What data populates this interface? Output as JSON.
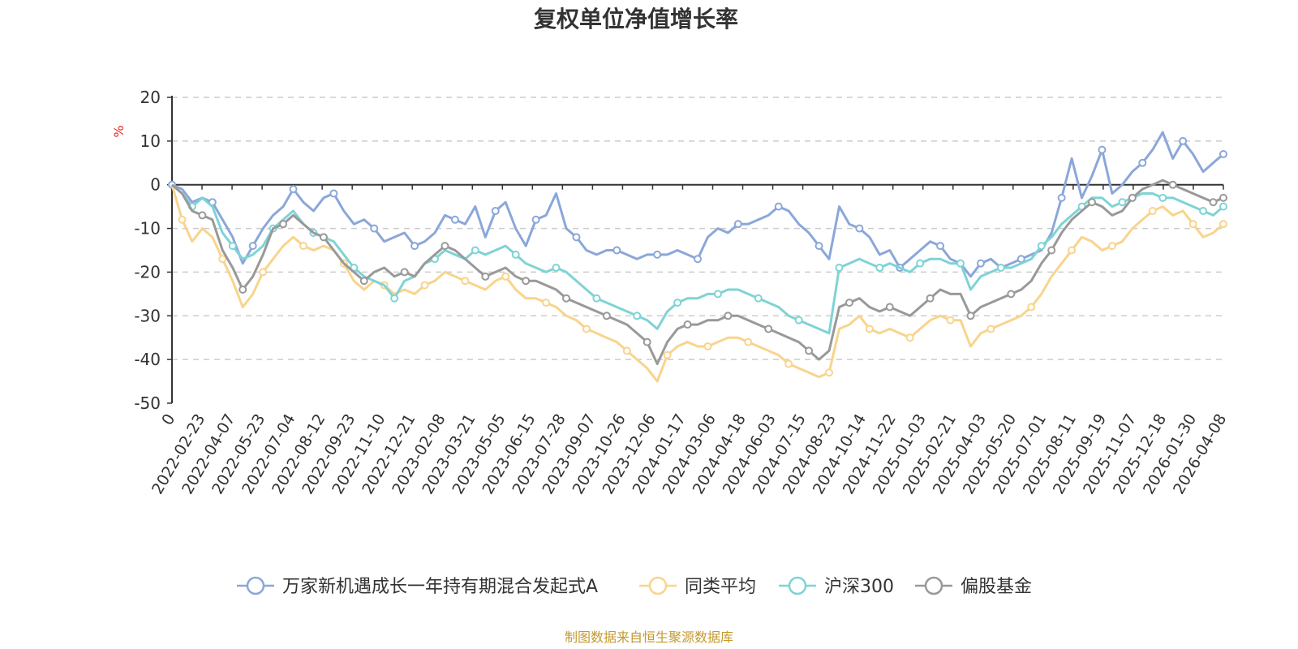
{
  "chart_data": {
    "type": "line",
    "title": "复权单位净值增长率",
    "y_unit": "%",
    "ylim": [
      -50,
      20
    ],
    "y_ticks": [
      20,
      10,
      0,
      -10,
      -20,
      -30,
      -40,
      -50
    ],
    "grid": true,
    "legend_position": "bottom",
    "x_tick_labels": [
      "0",
      "2022-02-23",
      "2022-04-07",
      "2022-05-23",
      "2022-07-04",
      "2022-08-12",
      "2022-09-23",
      "2022-11-10",
      "2022-12-21",
      "2023-02-08",
      "2023-03-21",
      "2023-05-05",
      "2023-06-15",
      "2023-07-28",
      "2023-09-07",
      "2023-10-26",
      "2023-12-06",
      "2024-01-17",
      "2024-03-06",
      "2024-04-18",
      "2024-06-03",
      "2024-07-15",
      "2024-08-23",
      "2024-10-14",
      "2024-11-22",
      "2025-01-03",
      "2025-02-21",
      "2025-04-03",
      "2025-05-20",
      "2025-07-01",
      "2025-08-11",
      "2025-09-19",
      "2025-11-07",
      "2025-12-18",
      "2026-01-30",
      "2026-04-08"
    ],
    "series": [
      {
        "name": "万家新机遇成长一年持有期混合发起式A",
        "color": "#8ba7d9",
        "values": [
          0,
          -1,
          -4,
          -3,
          -4,
          -8,
          -12,
          -18,
          -14,
          -10,
          -7,
          -5,
          -1,
          -4,
          -6,
          -3,
          -2,
          -6,
          -9,
          -8,
          -10,
          -13,
          -12,
          -11,
          -14,
          -13,
          -11,
          -7,
          -8,
          -9,
          -5,
          -12,
          -6,
          -4,
          -10,
          -14,
          -8,
          -7,
          -2,
          -10,
          -12,
          -15,
          -16,
          -15,
          -15,
          -16,
          -17,
          -16,
          -16,
          -16,
          -15,
          -16,
          -17,
          -12,
          -10,
          -11,
          -9,
          -9,
          -8,
          -7,
          -5,
          -6,
          -9,
          -11,
          -14,
          -17,
          -5,
          -9,
          -10,
          -12,
          -16,
          -15,
          -19,
          -17,
          -15,
          -13,
          -14,
          -17,
          -18,
          -21,
          -18,
          -17,
          -19,
          -18,
          -17,
          -16,
          -15,
          -11,
          -3,
          6,
          -3,
          2,
          8,
          -2,
          0,
          3,
          5,
          8,
          12,
          6,
          10,
          7,
          3,
          5,
          7
        ]
      },
      {
        "name": "同类平均",
        "color": "#f8d48c",
        "values": [
          0,
          -8,
          -13,
          -10,
          -12,
          -17,
          -22,
          -28,
          -25,
          -20,
          -17,
          -14,
          -12,
          -14,
          -15,
          -14,
          -15,
          -18,
          -22,
          -24,
          -22,
          -23,
          -25,
          -24,
          -25,
          -23,
          -22,
          -20,
          -21,
          -22,
          -23,
          -24,
          -22,
          -21,
          -24,
          -26,
          -26,
          -27,
          -28,
          -30,
          -31,
          -33,
          -34,
          -35,
          -36,
          -38,
          -40,
          -42,
          -45,
          -39,
          -37,
          -36,
          -37,
          -37,
          -36,
          -35,
          -35,
          -36,
          -37,
          -38,
          -39,
          -41,
          -42,
          -43,
          -44,
          -43,
          -33,
          -32,
          -30,
          -33,
          -34,
          -33,
          -34,
          -35,
          -33,
          -31,
          -30,
          -31,
          -31,
          -37,
          -34,
          -33,
          -32,
          -31,
          -30,
          -28,
          -25,
          -21,
          -18,
          -15,
          -12,
          -13,
          -15,
          -14,
          -13,
          -10,
          -8,
          -6,
          -5,
          -7,
          -6,
          -9,
          -12,
          -11,
          -9
        ]
      },
      {
        "name": "沪深300",
        "color": "#7fd3d5",
        "values": [
          0,
          -2,
          -5,
          -3,
          -5,
          -11,
          -14,
          -17,
          -16,
          -14,
          -10,
          -8,
          -6,
          -9,
          -11,
          -12,
          -13,
          -16,
          -19,
          -21,
          -22,
          -23,
          -26,
          -22,
          -21,
          -18,
          -17,
          -15,
          -16,
          -17,
          -15,
          -16,
          -15,
          -14,
          -16,
          -18,
          -19,
          -20,
          -19,
          -20,
          -22,
          -24,
          -26,
          -27,
          -28,
          -29,
          -30,
          -31,
          -33,
          -29,
          -27,
          -26,
          -26,
          -25,
          -25,
          -24,
          -24,
          -25,
          -26,
          -27,
          -28,
          -30,
          -31,
          -32,
          -33,
          -34,
          -19,
          -18,
          -17,
          -18,
          -19,
          -18,
          -19,
          -20,
          -18,
          -17,
          -17,
          -18,
          -18,
          -24,
          -21,
          -20,
          -19,
          -19,
          -18,
          -17,
          -14,
          -12,
          -9,
          -7,
          -5,
          -3,
          -3,
          -5,
          -4,
          -3,
          -2,
          -2,
          -3,
          -3,
          -4,
          -5,
          -6,
          -7,
          -5
        ]
      },
      {
        "name": "偏股基金",
        "color": "#999999",
        "values": [
          0,
          -2,
          -6,
          -7,
          -8,
          -15,
          -19,
          -24,
          -21,
          -16,
          -10,
          -9,
          -7,
          -9,
          -11,
          -12,
          -15,
          -18,
          -20,
          -22,
          -20,
          -19,
          -21,
          -20,
          -21,
          -18,
          -16,
          -14,
          -15,
          -17,
          -19,
          -21,
          -20,
          -19,
          -21,
          -22,
          -22,
          -23,
          -24,
          -26,
          -27,
          -28,
          -29,
          -30,
          -31,
          -32,
          -34,
          -36,
          -41,
          -36,
          -33,
          -32,
          -32,
          -31,
          -31,
          -30,
          -30,
          -31,
          -32,
          -33,
          -34,
          -35,
          -36,
          -38,
          -40,
          -38,
          -28,
          -27,
          -26,
          -28,
          -29,
          -28,
          -29,
          -30,
          -28,
          -26,
          -24,
          -25,
          -25,
          -30,
          -28,
          -27,
          -26,
          -25,
          -24,
          -22,
          -18,
          -15,
          -11,
          -8,
          -6,
          -4,
          -5,
          -7,
          -6,
          -3,
          -1,
          0,
          1,
          0,
          -1,
          -2,
          -3,
          -4,
          -3
        ]
      }
    ]
  },
  "source_note": "制图数据来自恒生聚源数据库"
}
